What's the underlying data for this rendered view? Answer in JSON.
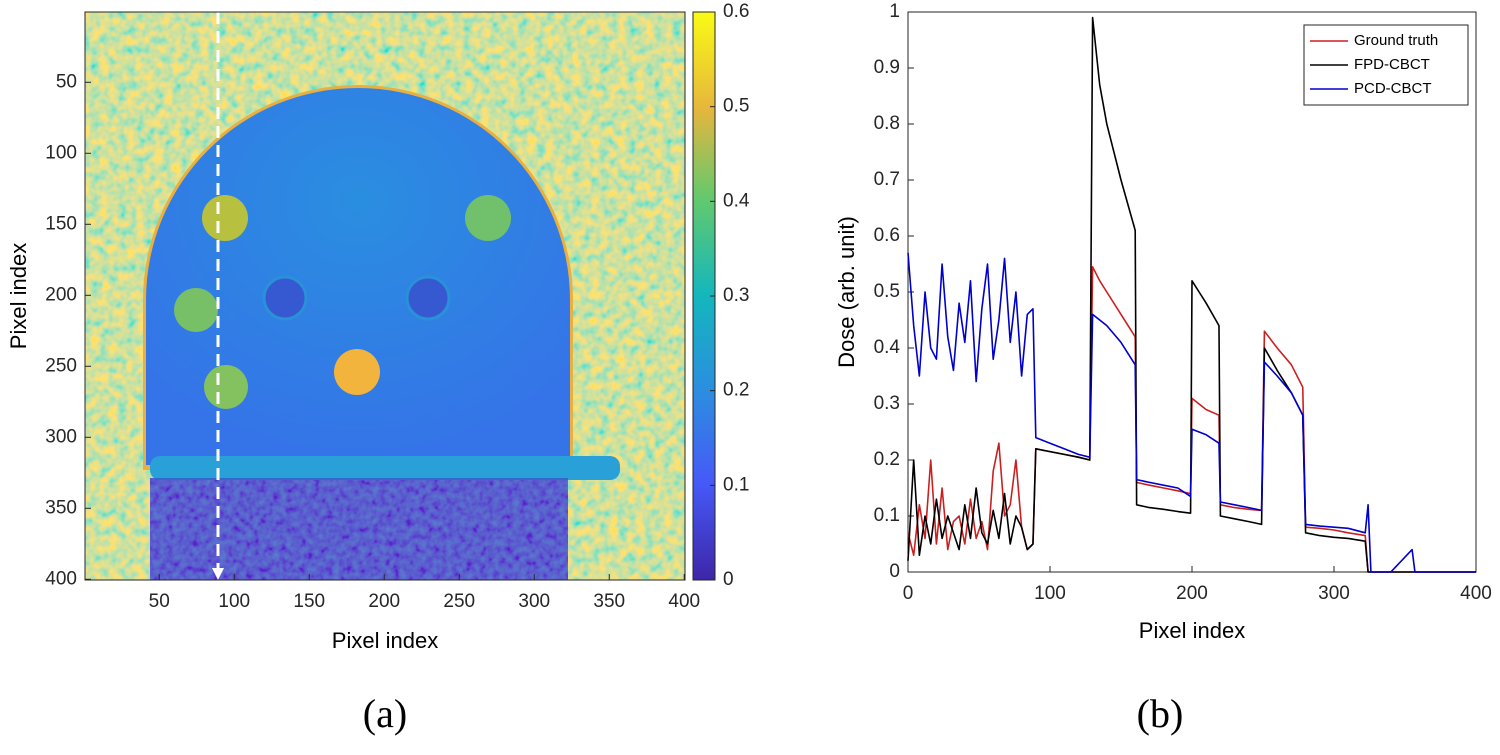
{
  "chart_data": [
    {
      "type": "heatmap",
      "caption": "(a)",
      "xlabel": "Pixel index",
      "ylabel": "Pixel index",
      "xlim": [
        0.5,
        400.5
      ],
      "ylim": [
        0.5,
        400.5
      ],
      "xticks": [
        50,
        100,
        150,
        200,
        250,
        300,
        350,
        400
      ],
      "yticks": [
        50,
        100,
        150,
        200,
        250,
        300,
        350,
        400
      ],
      "clim": [
        0,
        0.6
      ],
      "cticks": [
        0,
        0.1,
        0.2,
        0.3,
        0.4,
        0.5,
        0.6
      ]
    },
    {
      "type": "line",
      "caption": "(b)",
      "xlabel": "Pixel index",
      "ylabel": "Dose (arb. unit)",
      "xlim": [
        0,
        400
      ],
      "ylim": [
        0,
        1
      ],
      "xticks": [
        0,
        100,
        200,
        300,
        400
      ],
      "yticks": [
        0,
        0.1,
        0.2,
        0.3,
        0.4,
        0.5,
        0.6,
        0.7,
        0.8,
        0.9,
        1
      ],
      "legend": "upper right",
      "x": [
        0,
        4,
        8,
        12,
        16,
        20,
        24,
        28,
        32,
        36,
        40,
        44,
        48,
        52,
        56,
        60,
        64,
        68,
        72,
        76,
        80,
        84,
        88,
        90,
        100,
        110,
        120,
        128,
        130,
        135,
        140,
        150,
        160,
        161,
        170,
        180,
        190,
        199,
        200,
        205,
        210,
        219,
        220,
        230,
        240,
        249,
        251,
        260,
        270,
        278,
        280,
        290,
        300,
        310,
        322,
        324,
        326,
        340,
        355,
        357,
        400
      ],
      "series": [
        {
          "name": "Ground truth",
          "color": "#cc2020",
          "values": [
            0.07,
            0.03,
            0.12,
            0.06,
            0.2,
            0.05,
            0.15,
            0.04,
            0.09,
            0.1,
            0.05,
            0.13,
            0.06,
            0.09,
            0.04,
            0.18,
            0.23,
            0.1,
            0.12,
            0.2,
            0.08,
            0.04,
            0.05,
            0.22,
            0.215,
            0.21,
            0.205,
            0.2,
            0.545,
            0.52,
            0.5,
            0.46,
            0.42,
            0.16,
            0.155,
            0.15,
            0.145,
            0.14,
            0.31,
            0.3,
            0.29,
            0.28,
            0.12,
            0.115,
            0.112,
            0.11,
            0.43,
            0.4,
            0.37,
            0.33,
            0.08,
            0.078,
            0.075,
            0.07,
            0.065,
            0,
            0,
            0,
            0,
            0,
            0
          ]
        },
        {
          "name": "FPD-CBCT",
          "color": "#000000",
          "values": [
            0.02,
            0.2,
            0.03,
            0.1,
            0.05,
            0.13,
            0.06,
            0.1,
            0.07,
            0.04,
            0.12,
            0.06,
            0.15,
            0.07,
            0.05,
            0.11,
            0.06,
            0.14,
            0.05,
            0.1,
            0.08,
            0.04,
            0.05,
            0.22,
            0.215,
            0.21,
            0.205,
            0.2,
            0.99,
            0.87,
            0.8,
            0.7,
            0.61,
            0.12,
            0.115,
            0.112,
            0.108,
            0.105,
            0.52,
            0.5,
            0.48,
            0.44,
            0.1,
            0.095,
            0.09,
            0.085,
            0.4,
            0.36,
            0.32,
            0.28,
            0.07,
            0.065,
            0.062,
            0.06,
            0.055,
            0,
            0,
            0,
            0,
            0,
            0
          ]
        },
        {
          "name": "PCD-CBCT",
          "color": "#0000cc",
          "values": [
            0.57,
            0.44,
            0.35,
            0.5,
            0.4,
            0.38,
            0.55,
            0.42,
            0.36,
            0.48,
            0.41,
            0.52,
            0.34,
            0.47,
            0.55,
            0.38,
            0.45,
            0.56,
            0.41,
            0.5,
            0.35,
            0.46,
            0.47,
            0.24,
            0.23,
            0.22,
            0.21,
            0.205,
            0.46,
            0.45,
            0.44,
            0.41,
            0.37,
            0.165,
            0.16,
            0.155,
            0.15,
            0.135,
            0.255,
            0.25,
            0.245,
            0.23,
            0.125,
            0.12,
            0.115,
            0.11,
            0.375,
            0.35,
            0.32,
            0.28,
            0.085,
            0.082,
            0.08,
            0.078,
            0.07,
            0.12,
            0,
            0,
            0.04,
            0,
            0
          ]
        }
      ]
    }
  ]
}
